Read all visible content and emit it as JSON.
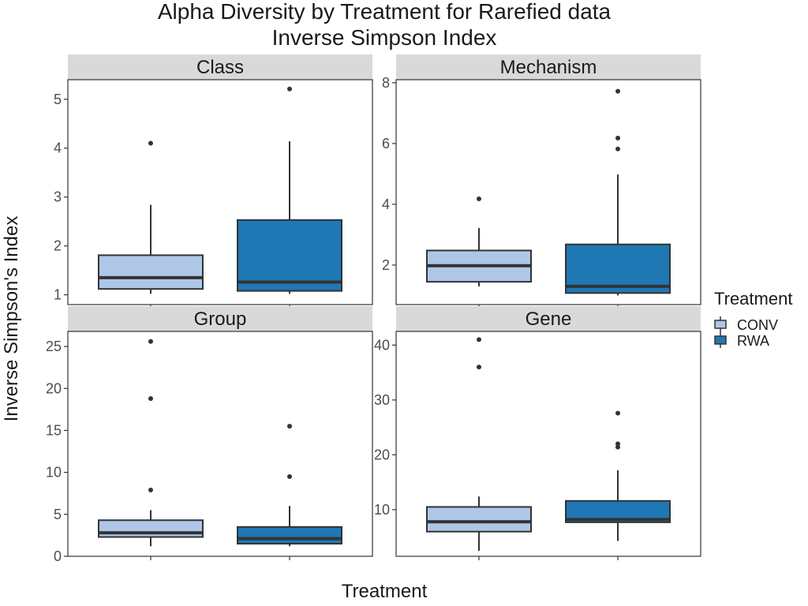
{
  "chart_data": {
    "type": "boxplot",
    "title": "Alpha Diversity by Treatment for Rarefied data",
    "subtitle": "Inverse Simpson Index",
    "xlabel": "Treatment",
    "ylabel": "Inverse Simpson's Index",
    "categories": [
      "CONV",
      "RWA"
    ],
    "legend": {
      "title": "Treatment",
      "position": "right",
      "entries": [
        {
          "label": "CONV",
          "color": "#aec7e8"
        },
        {
          "label": "RWA",
          "color": "#1f77b4"
        }
      ]
    },
    "grid": false,
    "facets": [
      {
        "name": "Class",
        "ylim": [
          0.8,
          5.4
        ],
        "yticks": [
          1,
          2,
          3,
          4,
          5
        ],
        "boxes": [
          {
            "group": "CONV",
            "whisker_low": 1.02,
            "q1": 1.12,
            "median": 1.35,
            "q3": 1.81,
            "whisker_high": 2.84,
            "outliers": [
              4.1
            ]
          },
          {
            "group": "RWA",
            "whisker_low": 1.02,
            "q1": 1.08,
            "median": 1.26,
            "q3": 2.53,
            "whisker_high": 4.14,
            "outliers": [
              5.21
            ]
          }
        ]
      },
      {
        "name": "Mechanism",
        "ylim": [
          0.7,
          8.1
        ],
        "yticks": [
          2,
          4,
          6,
          8
        ],
        "boxes": [
          {
            "group": "CONV",
            "whisker_low": 1.3,
            "q1": 1.45,
            "median": 1.98,
            "q3": 2.48,
            "whisker_high": 3.22,
            "outliers": [
              4.18
            ]
          },
          {
            "group": "RWA",
            "whisker_low": 1.0,
            "q1": 1.08,
            "median": 1.3,
            "q3": 2.68,
            "whisker_high": 4.98,
            "outliers": [
              5.82,
              6.18,
              7.72
            ]
          }
        ]
      },
      {
        "name": "Group",
        "ylim": [
          0,
          26.8
        ],
        "yticks": [
          0,
          5,
          10,
          15,
          20,
          25
        ],
        "boxes": [
          {
            "group": "CONV",
            "whisker_low": 1.2,
            "q1": 2.3,
            "median": 2.8,
            "q3": 4.3,
            "whisker_high": 5.5,
            "outliers": [
              7.9,
              18.8,
              25.6
            ]
          },
          {
            "group": "RWA",
            "whisker_low": 1.2,
            "q1": 1.5,
            "median": 2.1,
            "q3": 3.5,
            "whisker_high": 6.0,
            "outliers": [
              9.5,
              15.5
            ]
          }
        ]
      },
      {
        "name": "Gene",
        "ylim": [
          1.5,
          42.5
        ],
        "yticks": [
          10,
          20,
          30,
          40
        ],
        "boxes": [
          {
            "group": "CONV",
            "whisker_low": 2.5,
            "q1": 6.0,
            "median": 7.8,
            "q3": 10.5,
            "whisker_high": 12.4,
            "outliers": [
              36,
              41
            ]
          },
          {
            "group": "RWA",
            "whisker_low": 4.3,
            "q1": 7.7,
            "median": 8.2,
            "q3": 11.6,
            "whisker_high": 17.2,
            "outliers": [
              21.4,
              22.0,
              27.6
            ]
          }
        ]
      }
    ]
  }
}
